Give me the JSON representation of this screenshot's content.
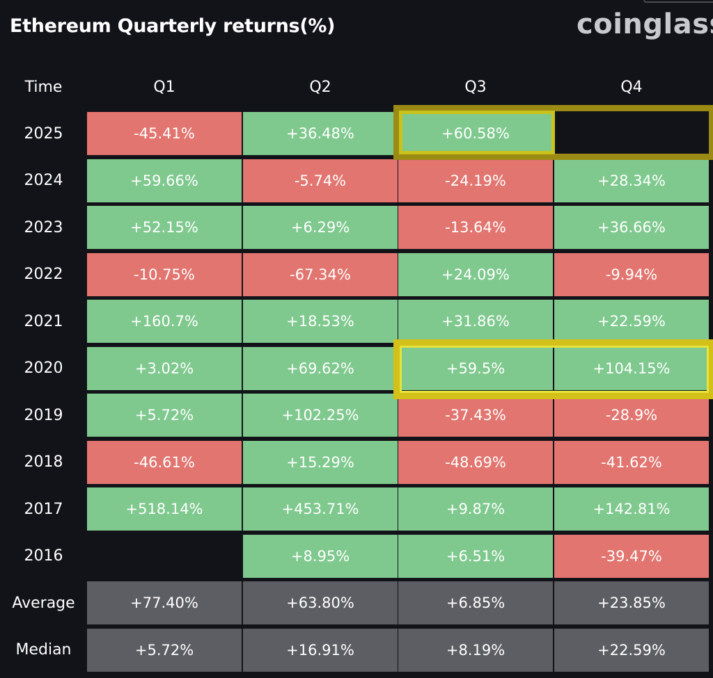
{
  "header": {
    "title": "Ethereum Quarterly returns(%)",
    "brand": "coinglass"
  },
  "chart_data": {
    "type": "table",
    "title": "Ethereum Quarterly returns(%)",
    "columns": [
      "Time",
      "Q1",
      "Q2",
      "Q3",
      "Q4"
    ],
    "rows": [
      {
        "label": "2025",
        "cells": [
          "-45.41%",
          "+36.48%",
          "+60.58%",
          ""
        ]
      },
      {
        "label": "2024",
        "cells": [
          "+59.66%",
          "-5.74%",
          "-24.19%",
          "+28.34%"
        ]
      },
      {
        "label": "2023",
        "cells": [
          "+52.15%",
          "+6.29%",
          "-13.64%",
          "+36.66%"
        ]
      },
      {
        "label": "2022",
        "cells": [
          "-10.75%",
          "-67.34%",
          "+24.09%",
          "-9.94%"
        ]
      },
      {
        "label": "2021",
        "cells": [
          "+160.7%",
          "+18.53%",
          "+31.86%",
          "+22.59%"
        ]
      },
      {
        "label": "2020",
        "cells": [
          "+3.02%",
          "+69.62%",
          "+59.5%",
          "+104.15%"
        ]
      },
      {
        "label": "2019",
        "cells": [
          "+5.72%",
          "+102.25%",
          "-37.43%",
          "-28.9%"
        ]
      },
      {
        "label": "2018",
        "cells": [
          "-46.61%",
          "+15.29%",
          "-48.69%",
          "-41.62%"
        ]
      },
      {
        "label": "2017",
        "cells": [
          "+518.14%",
          "+453.71%",
          "+9.87%",
          "+142.81%"
        ]
      },
      {
        "label": "2016",
        "cells": [
          "",
          "+8.95%",
          "+6.51%",
          "-39.47%"
        ]
      }
    ],
    "summary": [
      {
        "label": "Average",
        "cells": [
          "+77.40%",
          "+63.80%",
          "+6.85%",
          "+23.85%"
        ]
      },
      {
        "label": "Median",
        "cells": [
          "+5.72%",
          "+16.91%",
          "+8.19%",
          "+22.59%"
        ]
      }
    ],
    "highlighted": [
      {
        "row": "2025",
        "columns": [
          "Q3",
          "Q4"
        ]
      },
      {
        "row": "2020",
        "columns": [
          "Q3",
          "Q4"
        ]
      }
    ]
  },
  "colors": {
    "background": "#121319",
    "positive": "#7fc98e",
    "negative": "#e2756f",
    "summary": "#5d5e63",
    "highlight": "#d3c11a"
  }
}
